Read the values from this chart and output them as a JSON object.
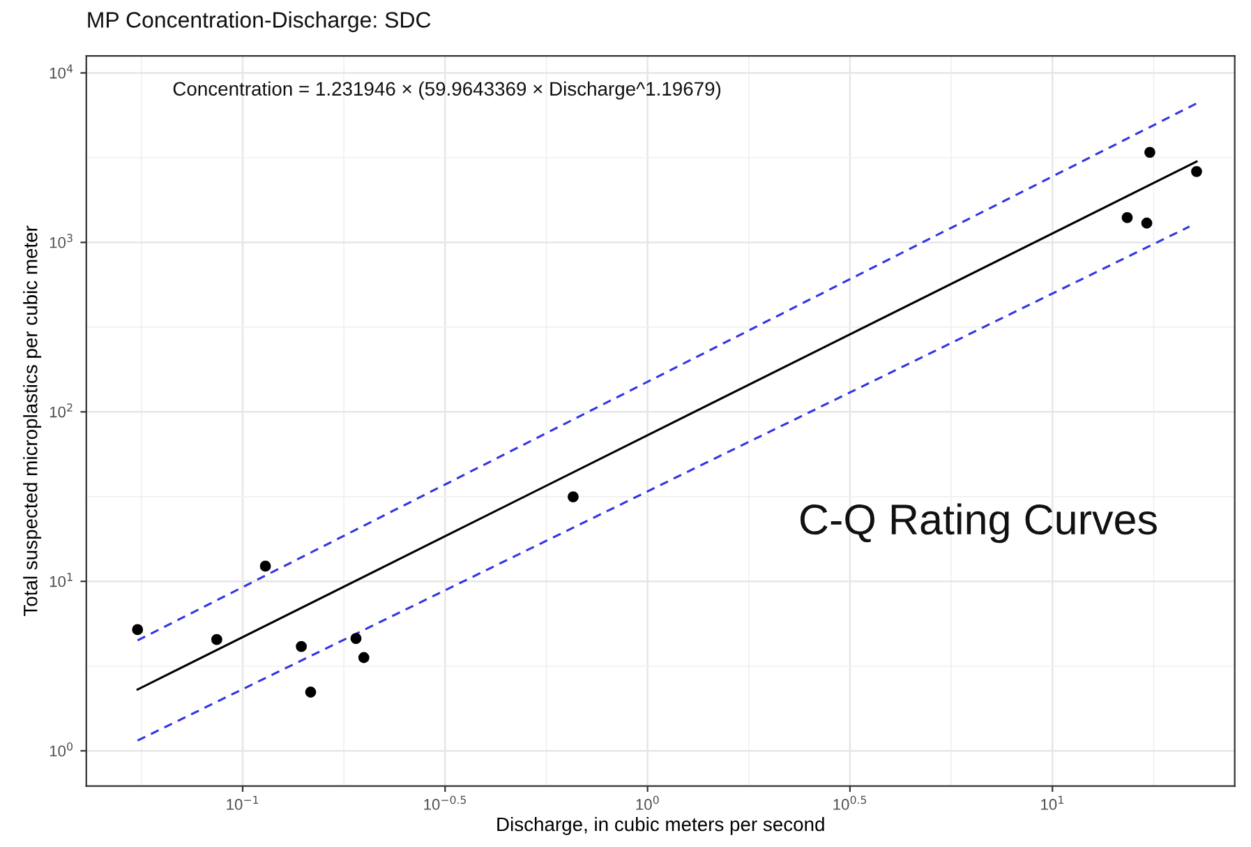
{
  "chart_data": {
    "type": "scatter",
    "title": "MP Concentration-Discharge: SDC",
    "xlabel": "Discharge, in cubic meters per second",
    "ylabel": "Total suspected microplastics per cubic meter",
    "log": "xy",
    "grid": true,
    "xlim": [
      0.0411,
      28.2
    ],
    "ylim": [
      0.62,
      12600
    ],
    "xticks": [
      {
        "value": 0.0562,
        "label": null
      },
      {
        "value": 0.1,
        "label": "10$^{−1}$"
      },
      {
        "value": 0.1778,
        "label": null
      },
      {
        "value": 0.3162,
        "label": "10$^{−0.5}$"
      },
      {
        "value": 0.5623,
        "label": null
      },
      {
        "value": 1,
        "label": "10$^{0}$"
      },
      {
        "value": 1.778,
        "label": null
      },
      {
        "value": 3.162,
        "label": "10$^{0.5}$"
      },
      {
        "value": 5.623,
        "label": null
      },
      {
        "value": 10,
        "label": "10$^{1}$"
      },
      {
        "value": 17.78,
        "label": null
      }
    ],
    "yticks": [
      {
        "value": 1,
        "label": "10$^{0}$"
      },
      {
        "value": 3.162,
        "label": null
      },
      {
        "value": 10,
        "label": "10$^{1}$"
      },
      {
        "value": 31.62,
        "label": null
      },
      {
        "value": 100,
        "label": "10$^{2}$"
      },
      {
        "value": 316.2,
        "label": null
      },
      {
        "value": 1000,
        "label": "10$^{3}$"
      },
      {
        "value": 3162,
        "label": null
      },
      {
        "value": 10000,
        "label": "10$^{4}$"
      }
    ],
    "series": [
      {
        "marker": "circle",
        "color": "#000000",
        "x": [
          0.055,
          0.0863,
          0.1138,
          0.1396,
          0.1472,
          0.1905,
          0.1992,
          0.655,
          17.4,
          22.7,
          15.3,
          17.1
        ],
        "values": [
          5.19,
          4.54,
          12.3,
          4.13,
          2.22,
          4.6,
          3.55,
          31.5,
          3400,
          2620,
          1400,
          1300
        ]
      },
      {
        "type": "line",
        "marker": "none",
        "color": "#000000",
        "line_style": "solid",
        "x": [
          0.055,
          22.7
        ],
        "values": [
          2.3,
          3000
        ]
      },
      {
        "type": "line",
        "marker": "none",
        "color": "#3333e6",
        "line_style": "dashed",
        "x": [
          0.055,
          22.7
        ],
        "values": [
          4.48,
          6610
        ]
      },
      {
        "type": "line",
        "marker": "none",
        "color": "#3333e6",
        "line_style": "dashed",
        "x": [
          0.055,
          21.8
        ],
        "values": [
          1.15,
          1240
        ]
      }
    ],
    "annotations": [
      "Concentration = 1.231946 × (59.9643369 × Discharge^1.19679)",
      "C-Q Rating Curves"
    ]
  }
}
